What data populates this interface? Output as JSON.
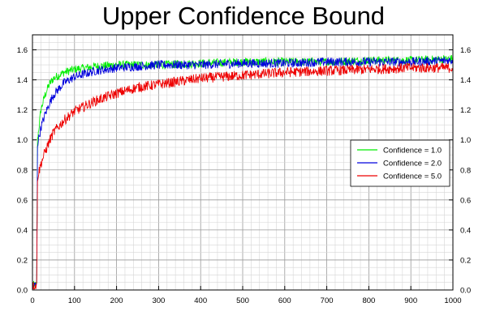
{
  "chart_data": {
    "type": "line",
    "title": "Upper Confidence Bound",
    "xlabel": "",
    "ylabel": "",
    "xlim": [
      0,
      1000
    ],
    "ylim": [
      0,
      1.7
    ],
    "x_ticks": [
      "0",
      "100",
      "200",
      "300",
      "400",
      "500",
      "600",
      "700",
      "800",
      "900",
      "1000"
    ],
    "y_ticks": [
      "0.0",
      "0.2",
      "0.4",
      "0.6",
      "0.8",
      "1.0",
      "1.2",
      "1.4",
      "1.6"
    ],
    "y_ticks_right": [
      "0.0",
      "0.2",
      "0.4",
      "0.6",
      "0.8",
      "1.0",
      "1.2",
      "1.4",
      "1.6"
    ],
    "grid": true,
    "legend_position": "right",
    "series": [
      {
        "name": "Confidence = 1.0",
        "color": "#00ee00",
        "x": [
          0,
          10,
          12,
          20,
          30,
          40,
          50,
          75,
          100,
          150,
          200,
          250,
          300,
          400,
          500,
          600,
          700,
          800,
          900,
          1000
        ],
        "values": [
          0.0,
          0.02,
          1.0,
          1.2,
          1.3,
          1.37,
          1.41,
          1.45,
          1.47,
          1.49,
          1.5,
          1.5,
          1.5,
          1.51,
          1.52,
          1.52,
          1.52,
          1.53,
          1.53,
          1.54
        ]
      },
      {
        "name": "Confidence = 2.0",
        "color": "#0000dd",
        "x": [
          0,
          10,
          12,
          20,
          30,
          40,
          50,
          75,
          100,
          150,
          200,
          250,
          300,
          400,
          500,
          600,
          700,
          800,
          900,
          1000
        ],
        "values": [
          0.0,
          0.02,
          0.97,
          1.08,
          1.17,
          1.24,
          1.3,
          1.38,
          1.42,
          1.46,
          1.48,
          1.49,
          1.5,
          1.5,
          1.51,
          1.51,
          1.52,
          1.52,
          1.52,
          1.53
        ]
      },
      {
        "name": "Confidence = 5.0",
        "color": "#ee0000",
        "x": [
          0,
          10,
          12,
          20,
          30,
          40,
          50,
          75,
          100,
          150,
          200,
          250,
          300,
          400,
          500,
          600,
          700,
          800,
          900,
          1000
        ],
        "values": [
          0.0,
          0.02,
          0.75,
          0.84,
          0.92,
          0.99,
          1.05,
          1.13,
          1.19,
          1.26,
          1.31,
          1.35,
          1.37,
          1.41,
          1.43,
          1.45,
          1.46,
          1.47,
          1.48,
          1.48
        ]
      }
    ]
  }
}
